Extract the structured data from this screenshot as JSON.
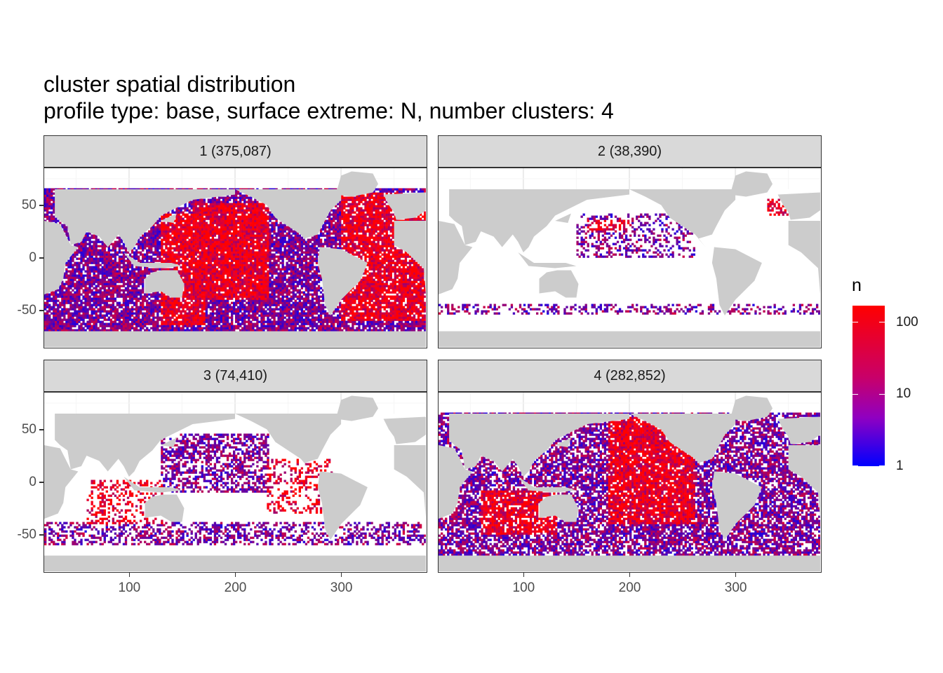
{
  "chart_data": {
    "type": "heatmap",
    "title": "cluster spatial distribution",
    "subtitle": "profile type: base, surface extreme: N, number clusters: 4",
    "xlabel": "",
    "ylabel": "",
    "xlim": [
      20,
      380
    ],
    "ylim": [
      -85,
      85
    ],
    "x_ticks": [
      100,
      200,
      300
    ],
    "x_tick_labels": [
      "100",
      "200",
      "300"
    ],
    "y_ticks": [
      50,
      0,
      -50
    ],
    "y_tick_labels": [
      "50",
      "0",
      "-50"
    ],
    "grid": true,
    "panels": [
      {
        "label": "1 (375,087)",
        "cluster": 1,
        "count": 375087
      },
      {
        "label": "2 (38,390)",
        "cluster": 2,
        "count": 38390
      },
      {
        "label": "3 (74,410)",
        "cluster": 3,
        "count": 74410
      },
      {
        "label": "4 (282,852)",
        "cluster": 4,
        "count": 282852
      }
    ],
    "legend": {
      "title": "n",
      "scale": "log",
      "breaks": [
        "100",
        "10",
        "1"
      ],
      "low_color": "#0000ff",
      "high_color": "#ff0000",
      "placement": "right"
    },
    "colors": {
      "land": "#cccccc",
      "ocean_empty": "#ffffff"
    }
  }
}
